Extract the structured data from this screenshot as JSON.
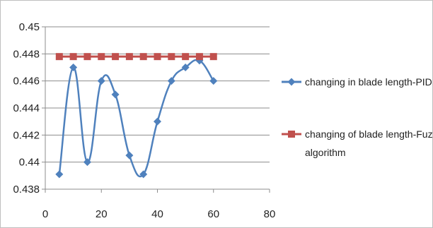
{
  "chart_data": {
    "type": "line",
    "title": "",
    "xlabel": "",
    "ylabel": "",
    "xlim": [
      0,
      80
    ],
    "ylim": [
      0.438,
      0.45
    ],
    "x_ticks": [
      0,
      20,
      40,
      60,
      80
    ],
    "y_ticks": [
      0.438,
      0.44,
      0.442,
      0.444,
      0.446,
      0.448,
      0.45
    ],
    "y_tick_labels": [
      "0.438",
      "0.44",
      "0.442",
      "0.444",
      "0.446",
      "0.448",
      "0.45"
    ],
    "grid": "horizontal",
    "legend_position": "right",
    "series": [
      {
        "name": "changing in blade length-PID",
        "color": "#4f81bd",
        "marker": "diamond",
        "smooth": true,
        "x": [
          5,
          10,
          15,
          20,
          25,
          30,
          35,
          40,
          45,
          50,
          55,
          60
        ],
        "y": [
          0.4391,
          0.447,
          0.44,
          0.446,
          0.445,
          0.4405,
          0.4391,
          0.443,
          0.446,
          0.447,
          0.4475,
          0.446
        ]
      },
      {
        "name": "changing of blade length-Fuzzy algorithm",
        "legend_lines": [
          "changing of blade length-Fuzzy",
          "algorithm"
        ],
        "color": "#c0504d",
        "marker": "square",
        "smooth": false,
        "x": [
          5,
          10,
          15,
          20,
          25,
          30,
          35,
          40,
          45,
          50,
          55,
          60
        ],
        "y": [
          0.4478,
          0.4478,
          0.4478,
          0.4478,
          0.4478,
          0.4478,
          0.4478,
          0.4478,
          0.4478,
          0.4478,
          0.4478,
          0.4478
        ]
      }
    ]
  }
}
